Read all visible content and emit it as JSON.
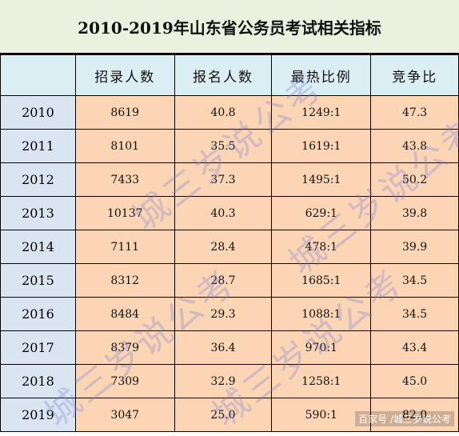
{
  "title": "2010-2019年山东省公务员考试相关指标",
  "table": {
    "headers": [
      "",
      "招录人数",
      "报名人数",
      "最热比例",
      "竞争比"
    ],
    "rows": [
      {
        "year": "2010",
        "recruits": "8619",
        "applicants": "40.8",
        "hottest_ratio": "1249:1",
        "competition": "47.3"
      },
      {
        "year": "2011",
        "recruits": "8101",
        "applicants": "35.5",
        "hottest_ratio": "1619:1",
        "competition": "43.8"
      },
      {
        "year": "2012",
        "recruits": "7433",
        "applicants": "37.3",
        "hottest_ratio": "1495:1",
        "competition": "50.2"
      },
      {
        "year": "2013",
        "recruits": "10137",
        "applicants": "40.3",
        "hottest_ratio": "629:1",
        "competition": "39.8"
      },
      {
        "year": "2014",
        "recruits": "7111",
        "applicants": "28.4",
        "hottest_ratio": "478:1",
        "competition": "39.9"
      },
      {
        "year": "2015",
        "recruits": "8312",
        "applicants": "28.7",
        "hottest_ratio": "1685:1",
        "competition": "34.5"
      },
      {
        "year": "2016",
        "recruits": "8484",
        "applicants": "29.3",
        "hottest_ratio": "1088:1",
        "competition": "34.5"
      },
      {
        "year": "2017",
        "recruits": "8379",
        "applicants": "36.4",
        "hottest_ratio": "970:1",
        "competition": "43.4"
      },
      {
        "year": "2018",
        "recruits": "7309",
        "applicants": "32.9",
        "hottest_ratio": "1258:1",
        "competition": "45.0"
      },
      {
        "year": "2019",
        "recruits": "3047",
        "applicants": "25.0",
        "hottest_ratio": "590:1",
        "competition": "82.0"
      }
    ]
  },
  "watermarks": [
    "城三岁说公考",
    "城三岁说公考",
    "城三岁说公考",
    "城三岁说公考"
  ],
  "credit": "百家号 /城三岁说公考",
  "colors": {
    "title_bg": "#ebf1de",
    "header_bg": "#dbeef4",
    "year_bg": "#dbe5f1",
    "cell_bg": "#fcd5b4",
    "watermark": "#7882dc"
  }
}
